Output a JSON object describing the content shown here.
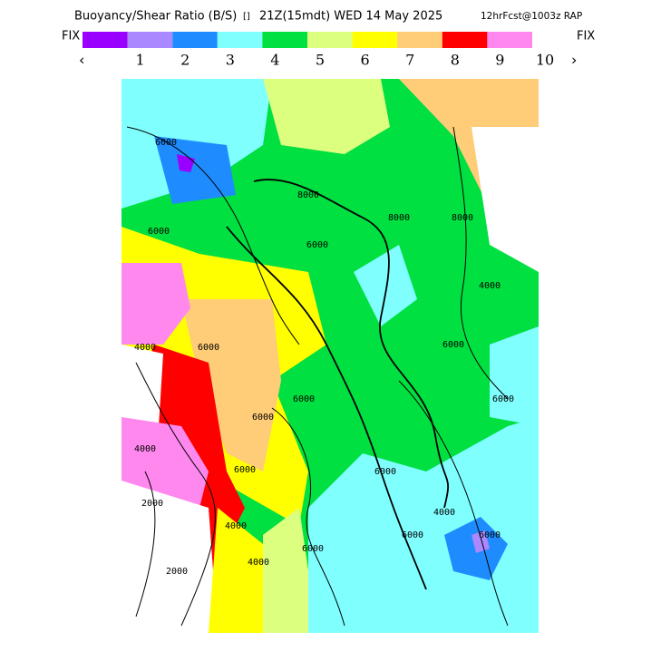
{
  "header": {
    "title": "Buoyancy/Shear Ratio (B/S)",
    "marker": "[]",
    "valid": "21Z(15mdt) WED 14 May 2025",
    "forecast": "12hrFcst@1003z RAP"
  },
  "legend": {
    "left_fix": "FIX",
    "right_fix": "FIX",
    "prev": "‹",
    "next": "›",
    "colors": [
      "#9a00ff",
      "#aa88ff",
      "#1e8cff",
      "#80ffff",
      "#00e040",
      "#ddff80",
      "#ffff00",
      "#ffcc77",
      "#ff0000",
      "#ff88ee"
    ],
    "labels": [
      "1",
      "2",
      "3",
      "4",
      "5",
      "6",
      "7",
      "8",
      "9",
      "10"
    ]
  },
  "contour_labels": [
    "6000",
    "6000",
    "8000",
    "6000",
    "8000",
    "8000",
    "4000",
    "6000",
    "6000",
    "6000",
    "6000",
    "4000",
    "4000",
    "2000",
    "2000",
    "4000",
    "4000",
    "6000",
    "6000",
    "4000",
    "6000",
    "6000",
    "6000",
    "6000"
  ]
}
